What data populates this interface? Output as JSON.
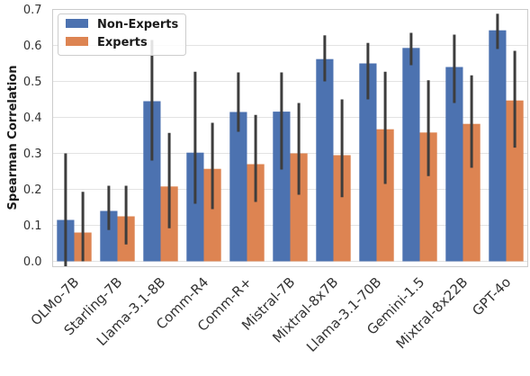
{
  "chart_data": {
    "type": "bar",
    "title": "",
    "xlabel": "",
    "ylabel": "Spearman Correlation",
    "ylim": [
      -0.015,
      0.7
    ],
    "yticks": [
      "0.0",
      "0.1",
      "0.2",
      "0.3",
      "0.4",
      "0.5",
      "0.6",
      "0.7"
    ],
    "grid": "horizontal",
    "legend": "top-left",
    "categories": [
      "OLMo-7B",
      "Starling-7B",
      "Llama-3.1-8B",
      "Comm-R4",
      "Comm-R+",
      "Mistral-7B",
      "Mixtral-8x7B",
      "Llama-3.1-70B",
      "Gemini-1.5",
      "Mixtral-8x22B",
      "GPT-4o"
    ],
    "series": [
      {
        "name": "Non-Experts",
        "color": "#4c72b0",
        "values": [
          0.115,
          0.14,
          0.445,
          0.302,
          0.415,
          0.416,
          0.562,
          0.55,
          0.593,
          0.54,
          0.642
        ],
        "ci_low": [
          -0.015,
          0.087,
          0.28,
          0.16,
          0.36,
          0.255,
          0.5,
          0.45,
          0.545,
          0.44,
          0.59
        ],
        "ci_high": [
          0.3,
          0.21,
          0.615,
          0.527,
          0.525,
          0.525,
          0.628,
          0.607,
          0.635,
          0.63,
          0.688
        ]
      },
      {
        "name": "Experts",
        "color": "#dd8452",
        "values": [
          0.08,
          0.125,
          0.208,
          0.257,
          0.27,
          0.3,
          0.295,
          0.367,
          0.358,
          0.382,
          0.447
        ],
        "ci_low": [
          0.0,
          0.047,
          0.092,
          0.145,
          0.165,
          0.185,
          0.178,
          0.215,
          0.237,
          0.26,
          0.316
        ],
        "ci_high": [
          0.193,
          0.21,
          0.357,
          0.385,
          0.407,
          0.44,
          0.45,
          0.527,
          0.503,
          0.517,
          0.585
        ]
      }
    ]
  }
}
